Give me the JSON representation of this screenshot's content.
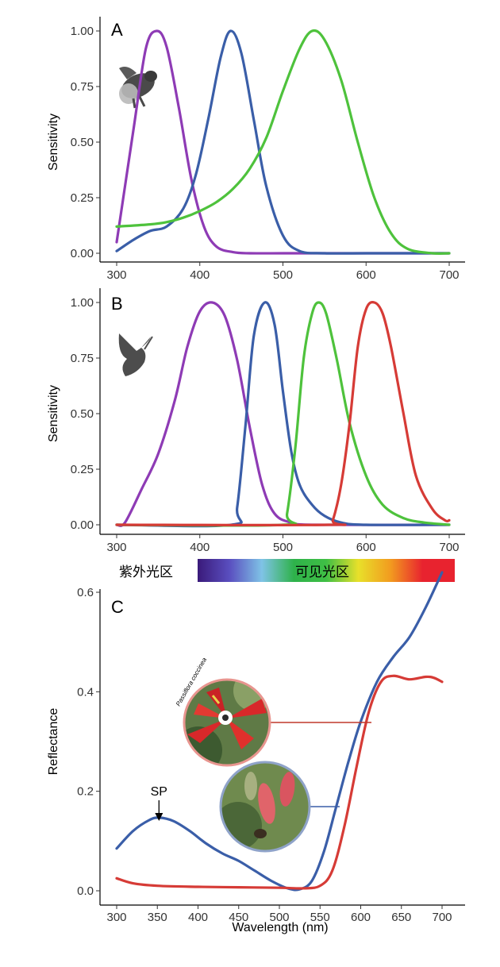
{
  "chart_data": [
    {
      "type": "line",
      "panel": "A",
      "ylabel": "Sensitivity",
      "xlim": [
        300,
        700
      ],
      "ylim": [
        0,
        1
      ],
      "xticks": [
        "300",
        "400",
        "500",
        "600",
        "700"
      ],
      "yticks": [
        "0.00",
        "0.25",
        "0.50",
        "0.75",
        "1.00"
      ],
      "grid": false,
      "icon": "bumblebee-silhouette",
      "series": [
        {
          "color": "#8e3bb5",
          "x": [
            300,
            320,
            335,
            348,
            360,
            375,
            390,
            405,
            420,
            440,
            460,
            500,
            550,
            700
          ],
          "y": [
            0.05,
            0.55,
            0.92,
            1.0,
            0.93,
            0.65,
            0.33,
            0.12,
            0.03,
            0.005,
            0,
            0,
            0,
            0
          ]
        },
        {
          "color": "#3a5ea8",
          "x": [
            300,
            320,
            340,
            360,
            380,
            395,
            410,
            425,
            437,
            450,
            465,
            480,
            500,
            520,
            550,
            600,
            700
          ],
          "y": [
            0.01,
            0.06,
            0.1,
            0.12,
            0.2,
            0.35,
            0.6,
            0.88,
            1.0,
            0.9,
            0.6,
            0.3,
            0.08,
            0.01,
            0,
            0,
            0
          ]
        },
        {
          "color": "#4ec23c",
          "x": [
            300,
            340,
            360,
            380,
            400,
            420,
            440,
            460,
            480,
            500,
            520,
            535,
            550,
            570,
            590,
            610,
            630,
            650,
            680,
            700
          ],
          "y": [
            0.12,
            0.13,
            0.14,
            0.16,
            0.19,
            0.23,
            0.29,
            0.38,
            0.52,
            0.73,
            0.92,
            1.0,
            0.96,
            0.78,
            0.5,
            0.25,
            0.09,
            0.02,
            0,
            0
          ]
        }
      ]
    },
    {
      "type": "line",
      "panel": "B",
      "ylabel": "Sensitivity",
      "xlim": [
        300,
        700
      ],
      "ylim": [
        0,
        1
      ],
      "xticks": [
        "300",
        "400",
        "500",
        "600",
        "700"
      ],
      "yticks": [
        "0.00",
        "0.25",
        "0.50",
        "0.75",
        "1.00"
      ],
      "grid": false,
      "icon": "hummingbird-silhouette",
      "series": [
        {
          "color": "#8e3bb5",
          "x": [
            300,
            310,
            330,
            350,
            370,
            385,
            400,
            415,
            430,
            445,
            460,
            475,
            490,
            510,
            540,
            700
          ],
          "y": [
            0,
            0.01,
            0.16,
            0.32,
            0.56,
            0.8,
            0.96,
            1.0,
            0.94,
            0.74,
            0.44,
            0.18,
            0.05,
            0.01,
            0,
            0
          ]
        },
        {
          "color": "#3a5ea8",
          "x": [
            300,
            438,
            445,
            455,
            465,
            478,
            490,
            500,
            510,
            520,
            535,
            550,
            570,
            600,
            700
          ],
          "y": [
            0,
            0,
            0.08,
            0.45,
            0.85,
            1.0,
            0.9,
            0.6,
            0.33,
            0.18,
            0.09,
            0.04,
            0.01,
            0,
            0
          ]
        },
        {
          "color": "#4ec23c",
          "x": [
            300,
            500,
            505,
            515,
            525,
            535,
            543,
            552,
            565,
            580,
            600,
            620,
            645,
            670,
            700
          ],
          "y": [
            0,
            0,
            0.05,
            0.35,
            0.75,
            0.95,
            1.0,
            0.95,
            0.74,
            0.46,
            0.22,
            0.09,
            0.03,
            0.01,
            0
          ]
        },
        {
          "color": "#d63b36",
          "x": [
            300,
            555,
            560,
            570,
            580,
            590,
            600,
            610,
            620,
            630,
            645,
            660,
            680,
            695,
            700
          ],
          "y": [
            0,
            0,
            0.02,
            0.18,
            0.45,
            0.8,
            0.97,
            1.0,
            0.95,
            0.8,
            0.5,
            0.22,
            0.07,
            0.02,
            0.02
          ]
        }
      ]
    },
    {
      "type": "line",
      "panel": "C",
      "xlabel": "Wavelength (nm)",
      "ylabel": "Reflectance",
      "xlim": [
        300,
        700
      ],
      "ylim": [
        0,
        0.65
      ],
      "xticks": [
        "300",
        "350",
        "400",
        "450",
        "500",
        "550",
        "600",
        "650",
        "700"
      ],
      "yticks": [
        "0.0",
        "0.2",
        "0.4",
        "0.6"
      ],
      "grid": false,
      "annotation": "SP",
      "annotation_x": 352,
      "series": [
        {
          "color": "#3a5ea8",
          "x": [
            300,
            320,
            340,
            352,
            370,
            390,
            410,
            430,
            450,
            470,
            490,
            510,
            525,
            540,
            555,
            570,
            585,
            600,
            620,
            640,
            660,
            680,
            700
          ],
          "y": [
            0.085,
            0.12,
            0.142,
            0.147,
            0.14,
            0.12,
            0.095,
            0.075,
            0.06,
            0.04,
            0.02,
            0.005,
            0.003,
            0.02,
            0.08,
            0.17,
            0.26,
            0.34,
            0.42,
            0.47,
            0.51,
            0.57,
            0.64
          ]
        },
        {
          "color": "#d63b36",
          "x": [
            300,
            320,
            350,
            400,
            450,
            500,
            530,
            550,
            565,
            580,
            595,
            610,
            625,
            640,
            660,
            680,
            690,
            700
          ],
          "y": [
            0.025,
            0.015,
            0.01,
            0.008,
            0.007,
            0.006,
            0.005,
            0.01,
            0.04,
            0.13,
            0.25,
            0.36,
            0.42,
            0.432,
            0.425,
            0.43,
            0.428,
            0.42
          ]
        }
      ]
    }
  ],
  "spectrum_bar": {
    "uv_label": "紫外光区",
    "visible_label": "可见光区",
    "colors": [
      "#3a1a7a",
      "#5a4fc0",
      "#7fc3e6",
      "#2eb24a",
      "#3fbf45",
      "#e8e02a",
      "#f29b1f",
      "#e8232f",
      "#e8232f"
    ]
  },
  "flower_photos": [
    {
      "species": "Passiflora coccinea",
      "links_to": "red"
    },
    {
      "species": "",
      "links_to": "blue"
    }
  ]
}
